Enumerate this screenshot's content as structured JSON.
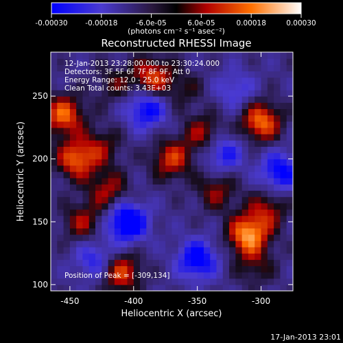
{
  "chart_data": {
    "type": "heatmap",
    "title": "Reconstructed RHESSI Image",
    "xlabel": "Heliocentric X (arcsec)",
    "ylabel": "Heliocentric Y (arcsec)",
    "xlim": [
      -465,
      -275
    ],
    "ylim": [
      95,
      285
    ],
    "x_ticks": [
      -450,
      -400,
      -350,
      -300
    ],
    "y_ticks": [
      100,
      150,
      200,
      250
    ],
    "colorbar": {
      "range": [
        -0.0003,
        0.0003
      ],
      "tick_values": [
        -0.0003,
        -0.00018,
        -6e-05,
        6e-05,
        0.00018,
        0.0003
      ],
      "tick_labels": [
        "-0.00030",
        "-0.00018",
        "-6.0e-05",
        "6.0e-05",
        "0.00018",
        "0.00030"
      ],
      "units": "(photons cm⁻² s⁻¹ asec⁻²)",
      "colors": [
        "#0000ff",
        "#5a2dbd",
        "#1a1030",
        "#c01010",
        "#ff6a00",
        "#ffff90"
      ]
    },
    "annotations": [
      "12-Jan-2013 23:28:00.000 to 23:30:24.000",
      "Detectors: 3F 5F 6F 7F 8F 9F, Att 0",
      "Energy Range: 12.0 - 25.0 keV",
      "Clean     Total counts: 3.43E+03"
    ],
    "peak": {
      "label": "Position of Peak = [-309,134]",
      "x": -309,
      "y": 134
    },
    "hotspots": [
      {
        "x": -455,
        "y": 235,
        "v": 0.00025
      },
      {
        "x": -445,
        "y": 200,
        "v": 0.00024
      },
      {
        "x": -440,
        "y": 150,
        "v": 0.00015
      },
      {
        "x": -425,
        "y": 210,
        "v": 0.00012
      },
      {
        "x": -420,
        "y": 175,
        "v": 0.00016
      },
      {
        "x": -415,
        "y": 260,
        "v": 0.0001
      },
      {
        "x": -410,
        "y": 110,
        "v": 0.00022
      },
      {
        "x": -385,
        "y": 265,
        "v": 0.00022
      },
      {
        "x": -370,
        "y": 200,
        "v": 0.0002
      },
      {
        "x": -360,
        "y": 255,
        "v": 8e-05
      },
      {
        "x": -345,
        "y": 220,
        "v": 0.00016
      },
      {
        "x": -335,
        "y": 175,
        "v": 0.00014
      },
      {
        "x": -310,
        "y": 140,
        "v": 0.0003
      },
      {
        "x": -300,
        "y": 230,
        "v": 0.00026
      },
      {
        "x": -295,
        "y": 160,
        "v": 0.00015
      },
      {
        "x": -305,
        "y": 115,
        "v": 0.0001
      }
    ],
    "coldspots": [
      {
        "x": -405,
        "y": 150,
        "v": -0.0003
      },
      {
        "x": -390,
        "y": 240,
        "v": -0.00022
      },
      {
        "x": -350,
        "y": 120,
        "v": -0.00024
      },
      {
        "x": -330,
        "y": 205,
        "v": -0.00018
      },
      {
        "x": -285,
        "y": 190,
        "v": -0.00022
      },
      {
        "x": -430,
        "y": 120,
        "v": -0.00016
      },
      {
        "x": -320,
        "y": 255,
        "v": -0.00012
      }
    ]
  },
  "timestamp": "17-Jan-2013 23:01"
}
